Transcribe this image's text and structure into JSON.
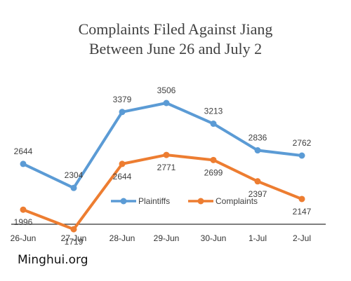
{
  "chart_data": {
    "type": "line",
    "title_line1": "Complaints Filed Against Jiang",
    "title_line2": "Between June 26 and July 2",
    "xlabel": "",
    "ylabel": "",
    "categories": [
      "26-Jun",
      "27-Jun",
      "28-Jun",
      "29-Jun",
      "30-Jun",
      "1-Jul",
      "2-Jul"
    ],
    "series": [
      {
        "name": "Plaintiffs",
        "color": "#5B9BD5",
        "values": [
          2644,
          2304,
          3379,
          3506,
          3213,
          2836,
          2762
        ],
        "labels": [
          "2644",
          "2304",
          "3379",
          "3506",
          "3213",
          "2836",
          "2762"
        ]
      },
      {
        "name": "Complaints",
        "color": "#ED7D31",
        "values": [
          1996,
          1719,
          2644,
          2771,
          2699,
          2397,
          2147
        ],
        "labels": [
          "1996",
          "1719",
          "2644",
          "2771",
          "2699",
          "2397",
          "2147"
        ]
      }
    ],
    "grid": false,
    "legend_position": "bottom"
  },
  "watermark": "Minghui.org"
}
